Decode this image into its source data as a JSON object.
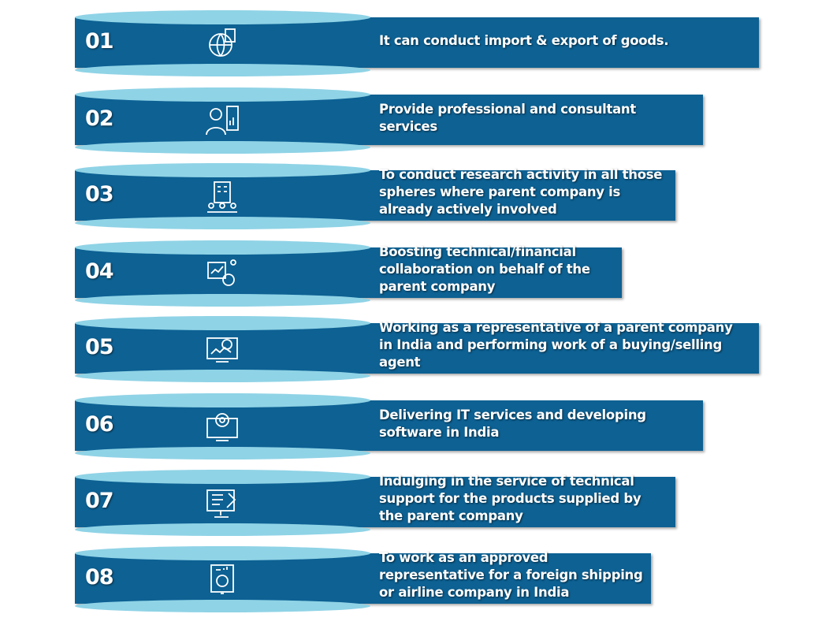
{
  "items": [
    {
      "number": "01",
      "lines": [
        "It can conduct import & export of goods."
      ]
    },
    {
      "number": "02",
      "lines": [
        "Provide professional and consultant",
        "services"
      ]
    },
    {
      "number": "03",
      "lines": [
        "To conduct research activity in all those",
        "spheres where parent company is",
        "already actively involved"
      ]
    },
    {
      "number": "04",
      "lines": [
        "Boosting technical/financial",
        "collaboration on behalf of the",
        "parent company"
      ]
    },
    {
      "number": "05",
      "lines": [
        "Working as a representative of a parent company",
        "in India and performing work of a buying/selling",
        "agent"
      ]
    },
    {
      "number": "06",
      "lines": [
        "Delivering IT services and developing",
        "software in India"
      ]
    },
    {
      "number": "07",
      "lines": [
        "Indulging in the service of technical",
        "support for the products supplied by",
        "the parent company"
      ]
    },
    {
      "number": "08",
      "lines": [
        "To work as an approved",
        "representative for a foreign shipping",
        "or airline company in India"
      ]
    }
  ]
}
